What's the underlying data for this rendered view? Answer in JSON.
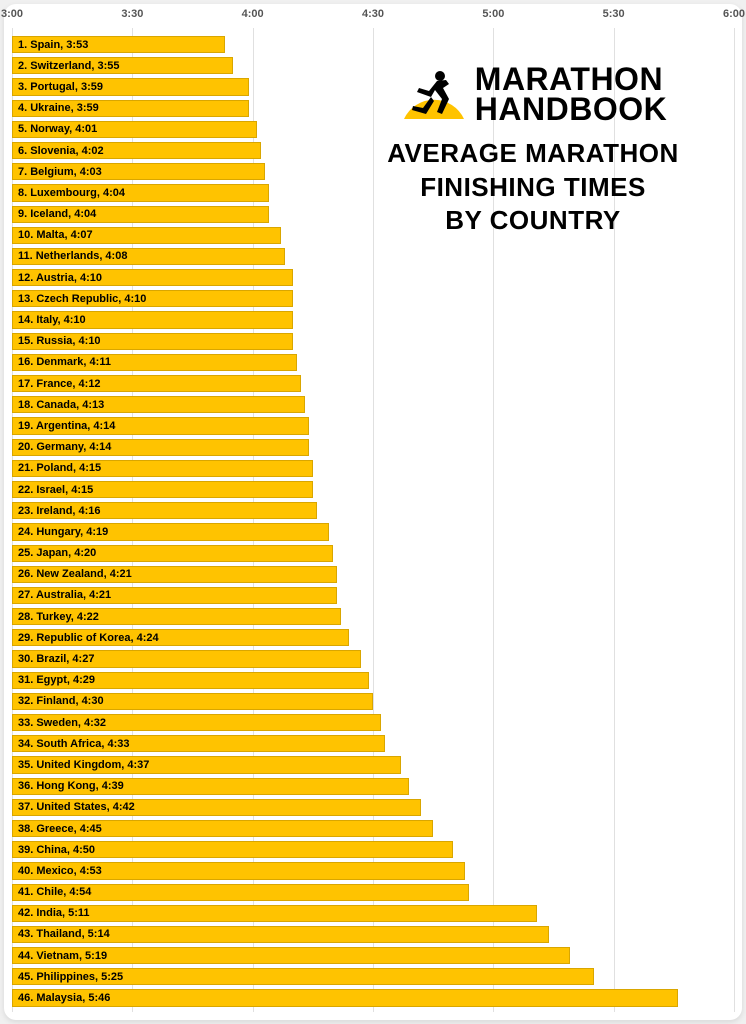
{
  "chart": {
    "type": "horizontal-bar",
    "x_axis": {
      "min_minutes": 180,
      "max_minutes": 360,
      "ticks": [
        {
          "minutes": 180,
          "label": "3:00"
        },
        {
          "minutes": 210,
          "label": "3:30"
        },
        {
          "minutes": 240,
          "label": "4:00"
        },
        {
          "minutes": 270,
          "label": "4:30"
        },
        {
          "minutes": 300,
          "label": "5:00"
        },
        {
          "minutes": 330,
          "label": "5:30"
        },
        {
          "minutes": 360,
          "label": "6:00"
        }
      ],
      "tick_fontsize": 11,
      "tick_color": "#555555"
    },
    "bar_color": "#ffc300",
    "bar_border_color": "rgba(0,0,0,0.15)",
    "grid_color": "#e0e0e0",
    "background_color": "#ffffff",
    "label_fontsize": 11,
    "label_fontweight": "bold",
    "label_color": "#000000",
    "data": [
      {
        "rank": 1,
        "country": "Spain",
        "time": "3:53",
        "minutes": 233
      },
      {
        "rank": 2,
        "country": "Switzerland",
        "time": "3:55",
        "minutes": 235
      },
      {
        "rank": 3,
        "country": "Portugal",
        "time": "3:59",
        "minutes": 239
      },
      {
        "rank": 4,
        "country": "Ukraine",
        "time": "3:59",
        "minutes": 239
      },
      {
        "rank": 5,
        "country": "Norway",
        "time": "4:01",
        "minutes": 241
      },
      {
        "rank": 6,
        "country": "Slovenia",
        "time": "4:02",
        "minutes": 242
      },
      {
        "rank": 7,
        "country": "Belgium",
        "time": "4:03",
        "minutes": 243
      },
      {
        "rank": 8,
        "country": "Luxembourg",
        "time": "4:04",
        "minutes": 244
      },
      {
        "rank": 9,
        "country": "Iceland",
        "time": "4:04",
        "minutes": 244
      },
      {
        "rank": 10,
        "country": "Malta",
        "time": "4:07",
        "minutes": 247
      },
      {
        "rank": 11,
        "country": "Netherlands",
        "time": "4:08",
        "minutes": 248
      },
      {
        "rank": 12,
        "country": "Austria",
        "time": "4:10",
        "minutes": 250
      },
      {
        "rank": 13,
        "country": "Czech Republic",
        "time": "4:10",
        "minutes": 250
      },
      {
        "rank": 14,
        "country": "Italy",
        "time": "4:10",
        "minutes": 250
      },
      {
        "rank": 15,
        "country": "Russia",
        "time": "4:10",
        "minutes": 250
      },
      {
        "rank": 16,
        "country": "Denmark",
        "time": "4:11",
        "minutes": 251
      },
      {
        "rank": 17,
        "country": "France",
        "time": "4:12",
        "minutes": 252
      },
      {
        "rank": 18,
        "country": "Canada",
        "time": "4:13",
        "minutes": 253
      },
      {
        "rank": 19,
        "country": "Argentina",
        "time": "4:14",
        "minutes": 254
      },
      {
        "rank": 20,
        "country": "Germany",
        "time": "4:14",
        "minutes": 254
      },
      {
        "rank": 21,
        "country": "Poland",
        "time": "4:15",
        "minutes": 255
      },
      {
        "rank": 22,
        "country": "Israel",
        "time": "4:15",
        "minutes": 255
      },
      {
        "rank": 23,
        "country": "Ireland",
        "time": "4:16",
        "minutes": 256
      },
      {
        "rank": 24,
        "country": "Hungary",
        "time": "4:19",
        "minutes": 259
      },
      {
        "rank": 25,
        "country": "Japan",
        "time": "4:20",
        "minutes": 260
      },
      {
        "rank": 26,
        "country": "New Zealand",
        "time": "4:21",
        "minutes": 261
      },
      {
        "rank": 27,
        "country": "Australia",
        "time": "4:21",
        "minutes": 261
      },
      {
        "rank": 28,
        "country": "Turkey",
        "time": "4:22",
        "minutes": 262
      },
      {
        "rank": 29,
        "country": "Republic of Korea",
        "time": "4:24",
        "minutes": 264
      },
      {
        "rank": 30,
        "country": "Brazil",
        "time": "4:27",
        "minutes": 267
      },
      {
        "rank": 31,
        "country": "Egypt",
        "time": "4:29",
        "minutes": 269
      },
      {
        "rank": 32,
        "country": "Finland",
        "time": "4:30",
        "minutes": 270
      },
      {
        "rank": 33,
        "country": "Sweden",
        "time": "4:32",
        "minutes": 272
      },
      {
        "rank": 34,
        "country": "South Africa",
        "time": "4:33",
        "minutes": 273
      },
      {
        "rank": 35,
        "country": "United Kingdom",
        "time": "4:37",
        "minutes": 277
      },
      {
        "rank": 36,
        "country": "Hong Kong",
        "time": "4:39",
        "minutes": 279
      },
      {
        "rank": 37,
        "country": "United States",
        "time": "4:42",
        "minutes": 282
      },
      {
        "rank": 38,
        "country": "Greece",
        "time": "4:45",
        "minutes": 285
      },
      {
        "rank": 39,
        "country": "China",
        "time": "4:50",
        "minutes": 290
      },
      {
        "rank": 40,
        "country": "Mexico",
        "time": "4:53",
        "minutes": 293
      },
      {
        "rank": 41,
        "country": "Chile",
        "time": "4:54",
        "minutes": 294
      },
      {
        "rank": 42,
        "country": "India",
        "time": "5:11",
        "minutes": 311
      },
      {
        "rank": 43,
        "country": "Thailand",
        "time": "5:14",
        "minutes": 314
      },
      {
        "rank": 44,
        "country": "Vietnam",
        "time": "5:19",
        "minutes": 319
      },
      {
        "rank": 45,
        "country": "Philippines",
        "time": "5:25",
        "minutes": 325
      },
      {
        "rank": 46,
        "country": "Malaysia",
        "time": "5:46",
        "minutes": 346
      }
    ]
  },
  "logo": {
    "line1": "MARATHON",
    "line2": "HANDBOOK",
    "accent_color": "#ffc300",
    "runner_color": "#000000"
  },
  "title": {
    "line1": "AVERAGE MARATHON",
    "line2": "FINISHING TIMES",
    "line3": "BY COUNTRY",
    "fontsize": 26,
    "fontweight": 900,
    "color": "#000000"
  }
}
